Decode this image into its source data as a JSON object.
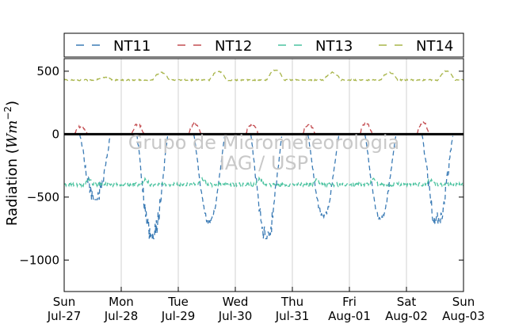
{
  "chart_data": {
    "type": "line",
    "ylabel_main": "Radiation (",
    "ylabel_units": "Wm",
    "ylabel_exp": "−2",
    "ylabel_close": ")",
    "ylim": [
      -1250,
      600
    ],
    "yticks": [
      500,
      0,
      -500,
      -1000
    ],
    "ytick_labels": [
      "500",
      "0",
      "−500",
      "−1000"
    ],
    "xlim_days": [
      0,
      7
    ],
    "xtick_labels": [
      [
        "Sun",
        "Jul-27"
      ],
      [
        "Mon",
        "Jul-28"
      ],
      [
        "Tue",
        "Jul-29"
      ],
      [
        "Wed",
        "Jul-30"
      ],
      [
        "Thu",
        "Jul-31"
      ],
      [
        "Fri",
        "Aug-01"
      ],
      [
        "Sat",
        "Aug-02"
      ],
      [
        "Sun",
        "Aug-03"
      ]
    ],
    "grid": "vertical",
    "legend_position": "top",
    "zero_line": true,
    "watermark": [
      "Grupo de Micrometeorologia",
      "IAG / USP"
    ],
    "series": [
      {
        "name": "NT11",
        "color": "#3b7bb5",
        "style": "dashed"
      },
      {
        "name": "NT12",
        "color": "#c44e52",
        "style": "dashed"
      },
      {
        "name": "NT13",
        "color": "#4cc3a0",
        "style": "dashed"
      },
      {
        "name": "NT14",
        "color": "#a8b54a",
        "style": "dashed"
      }
    ],
    "nt11_daily_min": [
      -520,
      -830,
      -710,
      -830,
      -660,
      -680,
      -710
    ],
    "nt12_daily_peak": [
      60,
      80,
      80,
      80,
      80,
      90,
      95
    ],
    "nt13_baseline": -400,
    "nt14_baseline": 430,
    "nt14_daily_peak": [
      450,
      490,
      500,
      510,
      490,
      490,
      500
    ]
  }
}
